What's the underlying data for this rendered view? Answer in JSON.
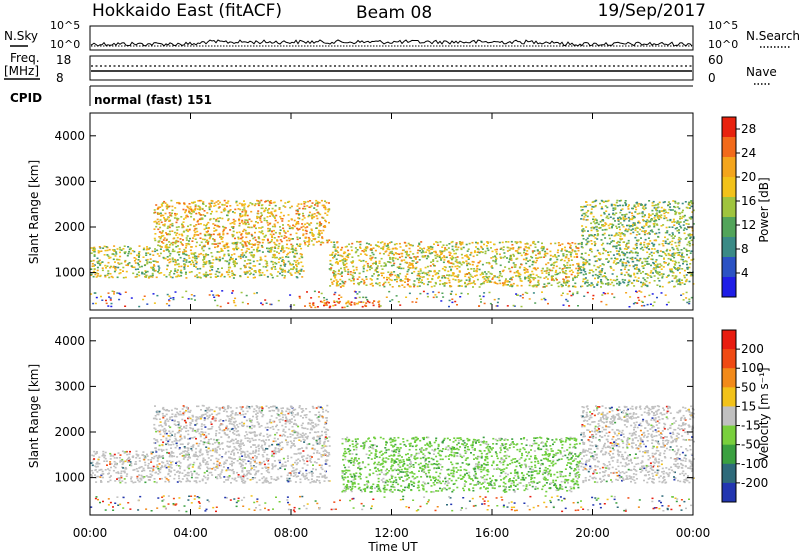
{
  "header": {
    "station": "Hokkaido East (fitACF)",
    "beam": "Beam 08",
    "date": "19/Sep/2017"
  },
  "strips": {
    "nsky": {
      "label": "N.Sky",
      "ticks": [
        "10^5",
        "10^0"
      ]
    },
    "nsearch": {
      "label": "N.Search",
      "ticks": [
        "10^5",
        "10^0"
      ]
    },
    "freq": {
      "label_top": "Freq.",
      "label_unit": "[MHz]",
      "ticks": [
        "18",
        "8"
      ]
    },
    "nave": {
      "label": "Nave",
      "ticks": [
        "60",
        "0"
      ]
    },
    "cpid": {
      "label": "CPID",
      "mode": "normal (fast) 151"
    }
  },
  "colors": {
    "power_high": "#e8220e",
    "power_low": "#1a2ad8",
    "velocity_pos": "#2236b0",
    "velocity_neg": "#e81c10",
    "velocity_ground": "#c0c0c0"
  },
  "chart_data": [
    {
      "type": "heatmap",
      "name": "Power",
      "xlabel": "",
      "ylabel": "Slant Range [km]",
      "xlim": [
        0,
        24
      ],
      "ylim": [
        180,
        4500
      ],
      "xticks": [
        "00:00",
        "04:00",
        "08:00",
        "12:00",
        "16:00",
        "20:00",
        "00:00"
      ],
      "yticks": [
        1000,
        2000,
        3000,
        4000
      ],
      "colorbar": {
        "label": "Power [dB]",
        "ticks": [
          4,
          8,
          12,
          16,
          20,
          24,
          28
        ],
        "range": [
          0,
          30
        ],
        "colors": [
          "#1f1ee6",
          "#2b52c4",
          "#3a8a86",
          "#52a45a",
          "#9fc43e",
          "#f2c21a",
          "#f4a51c",
          "#f26a1a",
          "#e8220e"
        ]
      },
      "regions_approx": [
        {
          "t": [
            0.0,
            8.5
          ],
          "range_km": [
            900,
            1600
          ],
          "db": 16
        },
        {
          "t": [
            2.5,
            9.5
          ],
          "range_km": [
            1600,
            2600
          ],
          "db": 20
        },
        {
          "t": [
            9.5,
            19.5
          ],
          "range_km": [
            700,
            1700
          ],
          "db": 18
        },
        {
          "t": [
            19.5,
            24.0
          ],
          "range_km": [
            700,
            2600
          ],
          "db": 14
        },
        {
          "t": [
            8.5,
            11.5
          ],
          "range_km": [
            250,
            400
          ],
          "db": 26
        }
      ]
    },
    {
      "type": "heatmap",
      "name": "Velocity",
      "xlabel": "Time UT",
      "ylabel": "Slant Range [km]",
      "xlim": [
        0,
        24
      ],
      "ylim": [
        180,
        4500
      ],
      "xticks": [
        "00:00",
        "04:00",
        "08:00",
        "12:00",
        "16:00",
        "20:00",
        "00:00"
      ],
      "yticks": [
        1000,
        2000,
        3000,
        4000
      ],
      "colorbar": {
        "label": "Velocity [m s⁻¹]",
        "ticks": [
          "200",
          "100",
          "50",
          "15",
          "-15",
          "-50",
          "-100",
          "-200"
        ],
        "colors": [
          "#2236b0",
          "#2e6a7a",
          "#3aa040",
          "#79cf3d",
          "#c0c0c0",
          "#f2c21a",
          "#f28a1a",
          "#f04a14",
          "#e81c10"
        ]
      },
      "regions_approx": [
        {
          "t": [
            0.0,
            9.5
          ],
          "range_km": [
            900,
            1600
          ],
          "class": "ground"
        },
        {
          "t": [
            2.5,
            9.5
          ],
          "range_km": [
            1600,
            2600
          ],
          "class": "ground"
        },
        {
          "t": [
            10.0,
            19.5
          ],
          "range_km": [
            700,
            1900
          ],
          "class": "positive"
        },
        {
          "t": [
            19.5,
            24.0
          ],
          "range_km": [
            900,
            2600
          ],
          "class": "ground"
        }
      ]
    }
  ]
}
